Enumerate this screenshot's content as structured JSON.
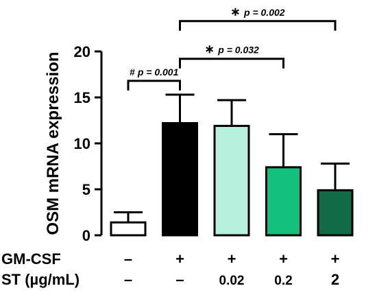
{
  "chart_data": {
    "type": "bar",
    "ylabel": "OSM mRNA expression",
    "ylim": [
      0,
      20
    ],
    "yticks": [
      0,
      5,
      10,
      15,
      20
    ],
    "grid": false,
    "values": [
      1.4,
      12.2,
      11.9,
      7.4,
      4.9
    ],
    "errors": [
      1.1,
      3.1,
      2.8,
      3.6,
      2.9
    ],
    "colors": [
      "#ffffff",
      "#000000",
      "#b8f0de",
      "#14c07e",
      "#106b46"
    ],
    "conditions": [
      {
        "label": "GM-CSF",
        "values": [
          "–",
          "+",
          "+",
          "+",
          "+"
        ]
      },
      {
        "label": "ST (µg/mL)",
        "values": [
          "–",
          "–",
          "0.02",
          "0.2",
          "2"
        ]
      }
    ],
    "comparisons": [
      {
        "from": 0,
        "to": 1,
        "symbol": "#",
        "p": "p = 0.001",
        "level": 16.8
      },
      {
        "from": 1,
        "to": 3,
        "symbol": "∗",
        "p": "p = 0.032",
        "level": 19.2
      },
      {
        "from": 1,
        "to": 4,
        "symbol": "∗",
        "p": "p = 0.002",
        "level": 23.3
      }
    ]
  }
}
